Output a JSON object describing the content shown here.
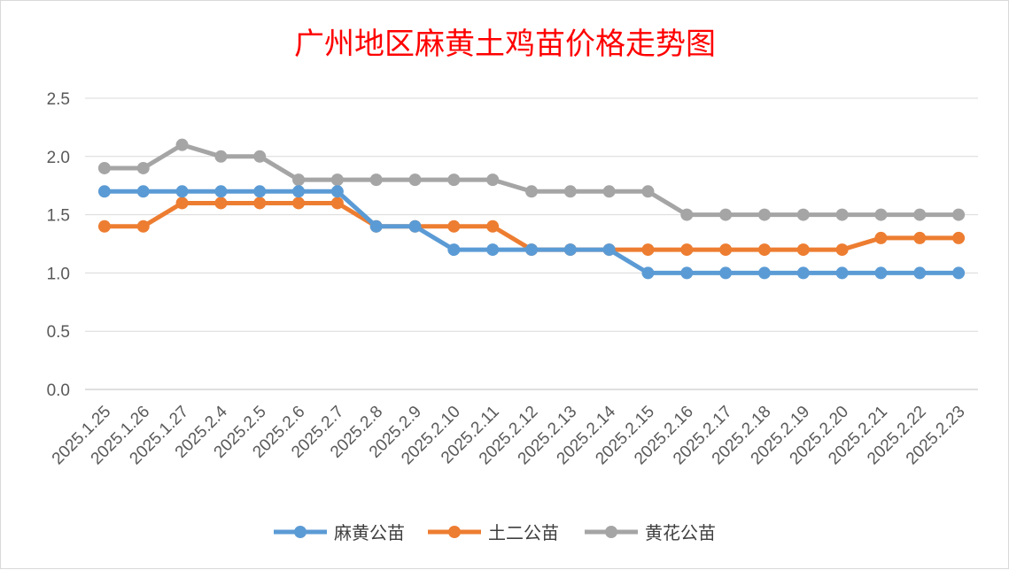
{
  "chart_data": {
    "type": "line",
    "title": "广州地区麻黄土鸡苗价格走势图",
    "xlabel": "",
    "ylabel": "",
    "ylim": [
      0,
      2.5
    ],
    "yticks": [
      "0.0",
      "0.5",
      "1.0",
      "1.5",
      "2.0",
      "2.5"
    ],
    "grid": true,
    "legend_position": "bottom",
    "categories": [
      "2025.1.25",
      "2025.1.26",
      "2025.1.27",
      "2025.2.4",
      "2025.2.5",
      "2025.2.6",
      "2025.2.7",
      "2025.2.8",
      "2025.2.9",
      "2025.2.10",
      "2025.2.11",
      "2025.2.12",
      "2025.2.13",
      "2025.2.14",
      "2025.2.15",
      "2025.2.16",
      "2025.2.17",
      "2025.2.18",
      "2025.2.19",
      "2025.2.20",
      "2025.2.21",
      "2025.2.22",
      "2025.2.23"
    ],
    "series": [
      {
        "name": "麻黄公苗",
        "color": "#5b9bd5",
        "values": [
          1.7,
          1.7,
          1.7,
          1.7,
          1.7,
          1.7,
          1.7,
          1.4,
          1.4,
          1.2,
          1.2,
          1.2,
          1.2,
          1.2,
          1.0,
          1.0,
          1.0,
          1.0,
          1.0,
          1.0,
          1.0,
          1.0,
          1.0
        ]
      },
      {
        "name": "土二公苗",
        "color": "#ed7d31",
        "values": [
          1.4,
          1.4,
          1.6,
          1.6,
          1.6,
          1.6,
          1.6,
          1.4,
          1.4,
          1.4,
          1.4,
          1.2,
          1.2,
          1.2,
          1.2,
          1.2,
          1.2,
          1.2,
          1.2,
          1.2,
          1.3,
          1.3,
          1.3
        ]
      },
      {
        "name": "黄花公苗",
        "color": "#a5a5a5",
        "values": [
          1.9,
          1.9,
          2.1,
          2.0,
          2.0,
          1.8,
          1.8,
          1.8,
          1.8,
          1.8,
          1.8,
          1.7,
          1.7,
          1.7,
          1.7,
          1.5,
          1.5,
          1.5,
          1.5,
          1.5,
          1.5,
          1.5,
          1.5
        ]
      }
    ]
  }
}
